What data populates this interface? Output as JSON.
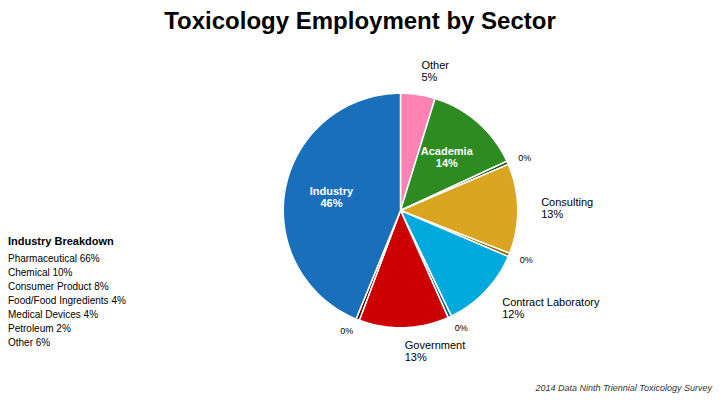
{
  "chart_data": {
    "type": "pie",
    "title": "Toxicology Employment by Sector",
    "categories": [
      "Other",
      "Academia",
      null,
      "Consulting",
      null,
      "Contract Laboratory",
      null,
      "Government",
      null,
      "Industry"
    ],
    "values": [
      5,
      14,
      0.5,
      13,
      0.5,
      12,
      0.5,
      13,
      0.5,
      46
    ],
    "value_labels": [
      "5%",
      "14%",
      "0%",
      "13%",
      "0%",
      "12%",
      "0%",
      "13%",
      "0%",
      "46%"
    ],
    "colors": [
      "#FF82B4",
      "#2E8B22",
      "#1A5C1A",
      "#DAA520",
      "#8B6914",
      "#00AADD",
      "#006080",
      "#CC0000",
      "#5C0000",
      "#1A6FBA"
    ],
    "data_labels": true,
    "annotations": [
      "Industry Breakdown",
      "Pharmaceutical  66%",
      "Chemical  10%",
      "Consumer Product  8%",
      "Food/Food Ingredients  4%",
      "Medical Devices  4%",
      "Petroleum  2%",
      "Other  6%"
    ],
    "caption": "2014 Data Ninth Triennial Toxicology Survey"
  }
}
